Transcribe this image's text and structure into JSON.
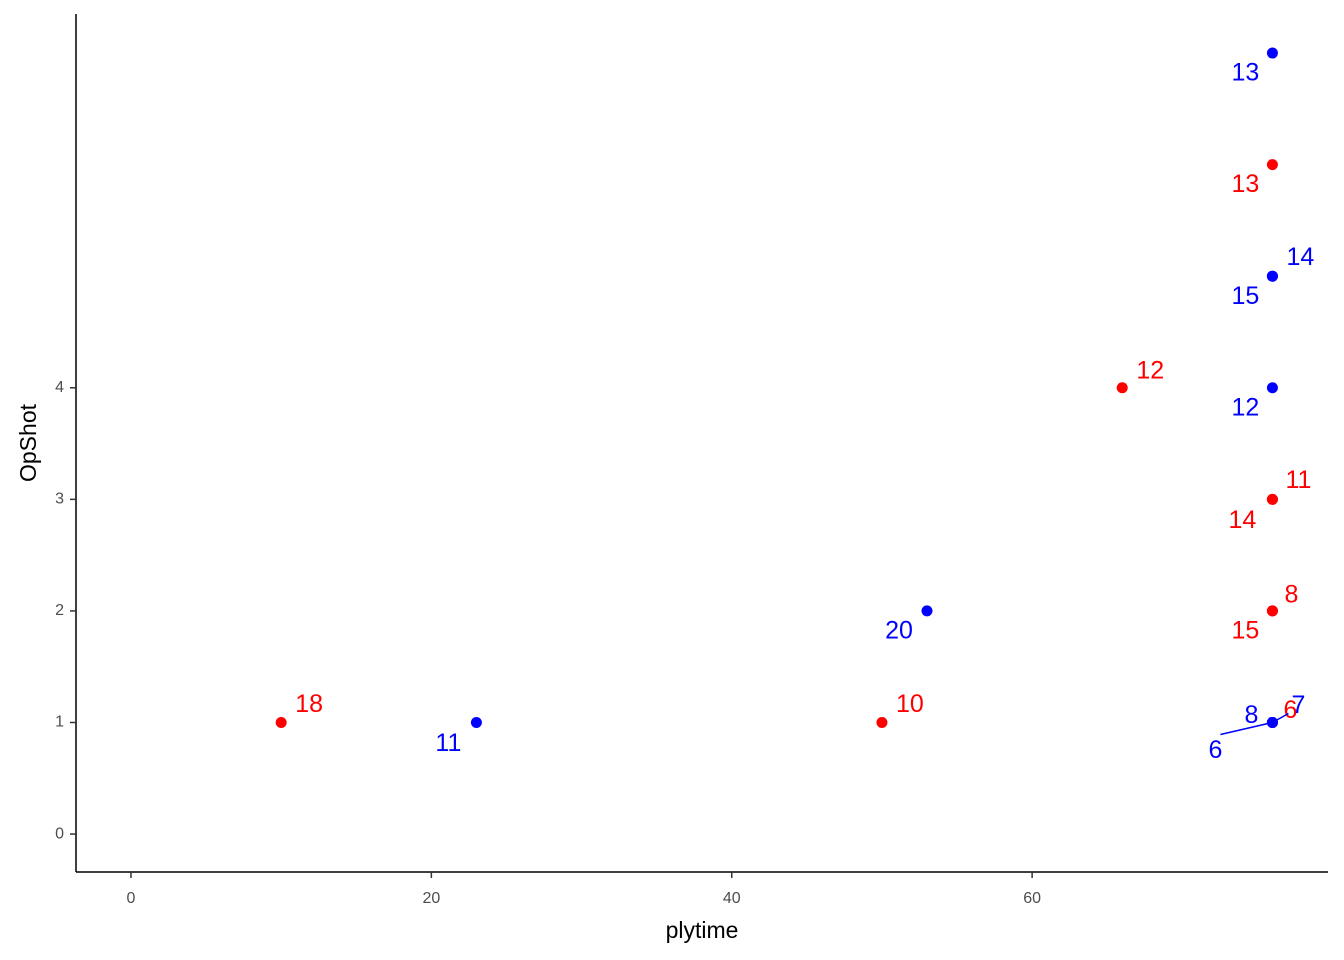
{
  "chart_data": {
    "type": "scatter",
    "x_label": "plytime",
    "y_label": "OpShot",
    "xlim": [
      -3.66,
      79.7
    ],
    "ylim": [
      -0.34,
      7.35
    ],
    "xticks": [
      0,
      20,
      40,
      60
    ],
    "yticks": [
      0,
      1,
      2,
      3,
      4
    ],
    "series": [
      {
        "color": "#ff0000",
        "x": [
          10,
          50,
          66,
          76,
          76,
          76,
          76,
          76,
          76
        ],
        "values": [
          1,
          1,
          4,
          6,
          3,
          3,
          2,
          2,
          1
        ],
        "labels": [
          "18",
          "10",
          "12",
          "13",
          "11",
          "14",
          "8",
          "15",
          "6"
        ]
      },
      {
        "color": "#0000ff",
        "x": [
          23,
          53,
          76,
          76,
          76,
          76,
          76,
          76,
          76
        ],
        "values": [
          1,
          2,
          7,
          5,
          5,
          4,
          1,
          1,
          1
        ],
        "labels": [
          "11",
          "20",
          "13",
          "14",
          "15",
          "12",
          "8",
          "6",
          "7"
        ]
      }
    ]
  }
}
